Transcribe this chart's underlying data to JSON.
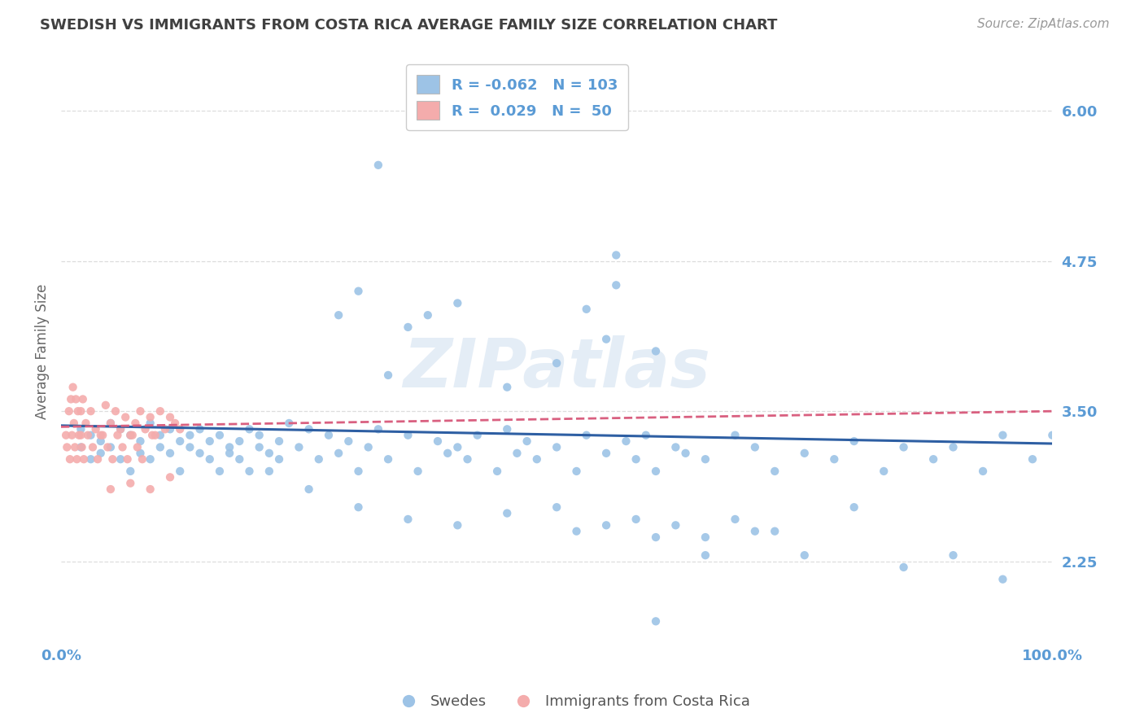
{
  "title": "SWEDISH VS IMMIGRANTS FROM COSTA RICA AVERAGE FAMILY SIZE CORRELATION CHART",
  "source_text": "Source: ZipAtlas.com",
  "ylabel": "Average Family Size",
  "xlim": [
    0.0,
    100.0
  ],
  "ylim": [
    1.6,
    6.4
  ],
  "yticks": [
    2.25,
    3.5,
    4.75,
    6.0
  ],
  "legend_R_blue": "-0.062",
  "legend_N_blue": "103",
  "legend_R_pink": "0.029",
  "legend_N_pink": "50",
  "blue_color": "#9DC3E6",
  "pink_color": "#F4ACAC",
  "trend_blue": "#2E5FA3",
  "trend_pink": "#D96080",
  "label_blue": "Swedes",
  "label_pink": "Immigrants from Costa Rica",
  "watermark": "ZIPatlas",
  "grid_color": "#DDDDDD",
  "background_color": "#FFFFFF",
  "title_color": "#404040",
  "tick_color": "#5B9BD5",
  "source_color": "#999999",
  "blue_x": [
    2,
    2,
    3,
    3,
    4,
    4,
    5,
    5,
    6,
    6,
    7,
    7,
    8,
    8,
    9,
    9,
    10,
    10,
    11,
    11,
    12,
    12,
    13,
    13,
    14,
    14,
    15,
    15,
    16,
    16,
    17,
    17,
    18,
    18,
    19,
    19,
    20,
    20,
    21,
    21,
    22,
    22,
    23,
    24,
    25,
    26,
    27,
    28,
    29,
    30,
    31,
    32,
    33,
    35,
    36,
    38,
    39,
    40,
    41,
    42,
    44,
    45,
    46,
    47,
    48,
    50,
    52,
    53,
    55,
    57,
    58,
    59,
    60,
    62,
    63,
    65,
    68,
    70,
    72,
    75,
    78,
    80,
    83,
    85,
    88,
    90,
    93,
    95,
    98,
    100,
    35,
    30,
    28,
    33,
    60,
    50,
    55,
    45,
    65,
    70,
    80,
    90,
    95
  ],
  "blue_y": [
    3.35,
    3.2,
    3.3,
    3.1,
    3.25,
    3.15,
    3.4,
    3.2,
    3.35,
    3.1,
    3.3,
    3.0,
    3.25,
    3.15,
    3.4,
    3.1,
    3.3,
    3.2,
    3.35,
    3.15,
    3.25,
    3.0,
    3.3,
    3.2,
    3.15,
    3.35,
    3.25,
    3.1,
    3.3,
    3.0,
    3.2,
    3.15,
    3.25,
    3.1,
    3.35,
    3.0,
    3.2,
    3.3,
    3.15,
    3.0,
    3.25,
    3.1,
    3.4,
    3.2,
    3.35,
    3.1,
    3.3,
    3.15,
    3.25,
    3.0,
    3.2,
    3.35,
    3.1,
    3.3,
    3.0,
    3.25,
    3.15,
    3.2,
    3.1,
    3.3,
    3.0,
    3.35,
    3.15,
    3.25,
    3.1,
    3.2,
    3.0,
    3.3,
    3.15,
    3.25,
    3.1,
    3.3,
    3.0,
    3.2,
    3.15,
    3.1,
    3.3,
    3.2,
    3.0,
    3.15,
    3.1,
    3.25,
    3.0,
    3.2,
    3.1,
    3.2,
    3.0,
    3.3,
    3.1,
    3.3,
    4.2,
    4.5,
    4.3,
    3.8,
    4.0,
    3.9,
    4.1,
    3.7,
    2.3,
    2.5,
    2.7,
    2.3,
    2.1
  ],
  "blue_outlier_x": [
    32,
    56,
    56,
    53,
    40,
    37
  ],
  "blue_outlier_y": [
    5.55,
    4.8,
    4.55,
    4.35,
    4.4,
    4.3
  ],
  "blue_low_x": [
    25,
    30,
    35,
    40,
    45,
    50,
    52,
    55,
    58,
    60,
    62,
    65,
    68,
    72,
    75,
    85,
    60
  ],
  "blue_low_y": [
    2.85,
    2.7,
    2.6,
    2.55,
    2.65,
    2.7,
    2.5,
    2.55,
    2.6,
    2.45,
    2.55,
    2.45,
    2.6,
    2.5,
    2.3,
    2.2,
    1.75
  ],
  "pink_x": [
    0.5,
    0.8,
    1.0,
    1.2,
    1.3,
    1.5,
    1.7,
    2.0,
    2.2,
    2.5,
    3.0,
    3.5,
    4.0,
    4.5,
    5.0,
    5.5,
    6.0,
    6.5,
    7.0,
    7.5,
    8.0,
    8.5,
    9.0,
    9.5,
    10.0,
    10.5,
    11.0,
    11.5,
    12.0,
    0.6,
    0.9,
    1.1,
    1.4,
    1.6,
    1.8,
    2.1,
    2.3,
    2.7,
    3.2,
    3.7,
    4.2,
    4.7,
    5.2,
    5.7,
    6.2,
    6.7,
    7.2,
    7.7,
    8.2,
    9.2
  ],
  "pink_y": [
    3.3,
    3.5,
    3.6,
    3.7,
    3.4,
    3.6,
    3.5,
    3.5,
    3.6,
    3.4,
    3.5,
    3.35,
    3.3,
    3.55,
    3.4,
    3.5,
    3.35,
    3.45,
    3.3,
    3.4,
    3.5,
    3.35,
    3.45,
    3.3,
    3.5,
    3.35,
    3.45,
    3.4,
    3.35,
    3.2,
    3.1,
    3.3,
    3.2,
    3.1,
    3.3,
    3.2,
    3.1,
    3.3,
    3.2,
    3.1,
    3.3,
    3.2,
    3.1,
    3.3,
    3.2,
    3.1,
    3.3,
    3.2,
    3.1,
    3.3
  ],
  "pink_extra_x": [
    2.0,
    5.0,
    7.0,
    9.0,
    11.0
  ],
  "pink_extra_y": [
    3.3,
    2.85,
    2.9,
    2.85,
    2.95
  ],
  "blue_trend_x": [
    0,
    100
  ],
  "blue_trend_y": [
    3.38,
    3.23
  ],
  "pink_trend_x": [
    0,
    100
  ],
  "pink_trend_y": [
    3.37,
    3.5
  ]
}
